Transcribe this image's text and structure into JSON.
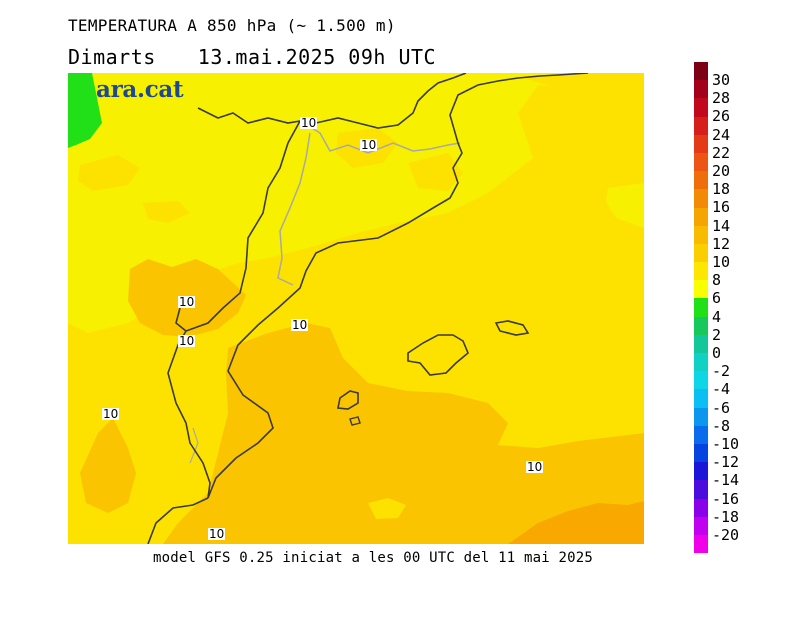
{
  "header": {
    "title": "TEMPERATURA A 850 hPa (~ 1.500 m)",
    "day": "Dimarts",
    "datetime": "13.mai.2025 09h UTC"
  },
  "logo": {
    "text": "ara.cat"
  },
  "footer": {
    "text": "model GFS 0.25 iniciat a les 00 UTC del 11 mai 2025"
  },
  "contour_labels": [
    "10",
    "10",
    "10",
    "10",
    "10",
    "10",
    "10",
    "10"
  ],
  "legend": {
    "labels": [
      "30",
      "28",
      "26",
      "24",
      "22",
      "20",
      "18",
      "16",
      "14",
      "12",
      "10",
      "8",
      "6",
      "4",
      "2",
      "0",
      "-2",
      "-4",
      "-6",
      "-8",
      "-10",
      "-12",
      "-14",
      "-16",
      "-18",
      "-20"
    ],
    "colors": [
      "#7d0016",
      "#a3001c",
      "#c2081c",
      "#d61f1a",
      "#e33b17",
      "#ec5513",
      "#ee6e0c",
      "#f28a06",
      "#f5a400",
      "#f8bb00",
      "#fbce00",
      "#fde600",
      "#f8ff00",
      "#22e018",
      "#17c85c",
      "#14c79a",
      "#11d0c4",
      "#0fd6e6",
      "#0bbff2",
      "#0c97ef",
      "#0a6cec",
      "#0544e0",
      "#1b16d8",
      "#4d0cde",
      "#8a00e8",
      "#c100f0",
      "#f000e8"
    ]
  },
  "colors": {
    "field_yellow": "#f7f000",
    "field_gold": "#fde200",
    "field_amber": "#fbc400",
    "field_orange": "#f9a800",
    "field_green": "#22e018",
    "coastline": "#3a3a3a",
    "border": "#a8a8a8"
  }
}
